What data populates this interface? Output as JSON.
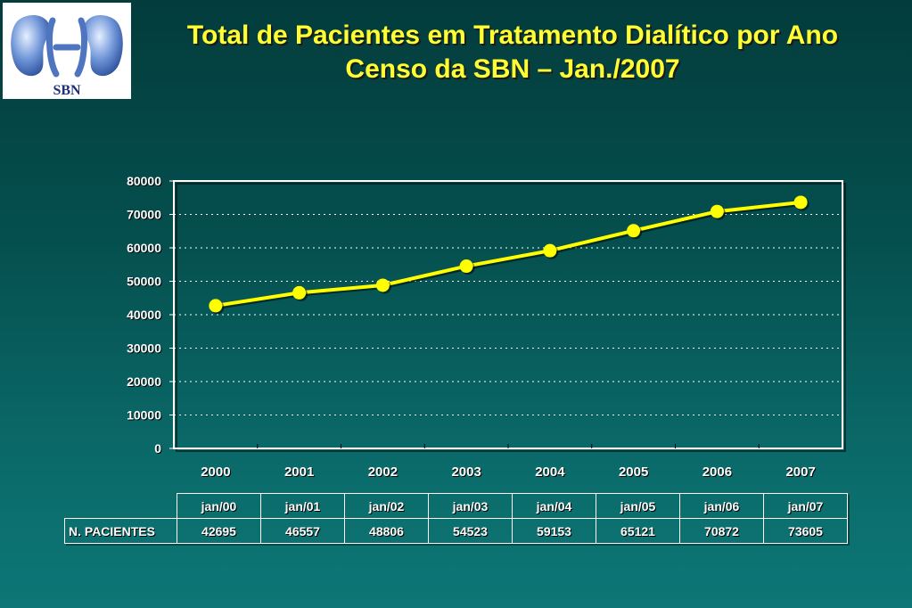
{
  "logo": {
    "text": "SBN"
  },
  "title": {
    "line1": "Total de Pacientes em Tratamento Dialítico por Ano",
    "line2": "Censo da SBN – Jan./2007"
  },
  "chart_data": {
    "type": "line",
    "categories": [
      "2000",
      "2001",
      "2002",
      "2003",
      "2004",
      "2005",
      "2006",
      "2007"
    ],
    "series": [
      {
        "values": [
          42695,
          46557,
          48806,
          54523,
          59153,
          65121,
          70872,
          73605
        ]
      }
    ],
    "ylim": [
      0,
      80000
    ],
    "yticks": [
      "0",
      "10000",
      "20000",
      "30000",
      "40000",
      "50000",
      "60000",
      "70000",
      "80000"
    ],
    "grid": true,
    "line_color": "#ffff00",
    "marker_color": "#ffff00",
    "axis_color": "#ffffff"
  },
  "table": {
    "headers": [
      "jan/00",
      "jan/01",
      "jan/02",
      "jan/03",
      "jan/04",
      "jan/05",
      "jan/06",
      "jan/07"
    ],
    "row_label": "N.  PACIENTES",
    "values": [
      "42695",
      "46557",
      "48806",
      "54523",
      "59153",
      "65121",
      "70872",
      "73605"
    ]
  }
}
